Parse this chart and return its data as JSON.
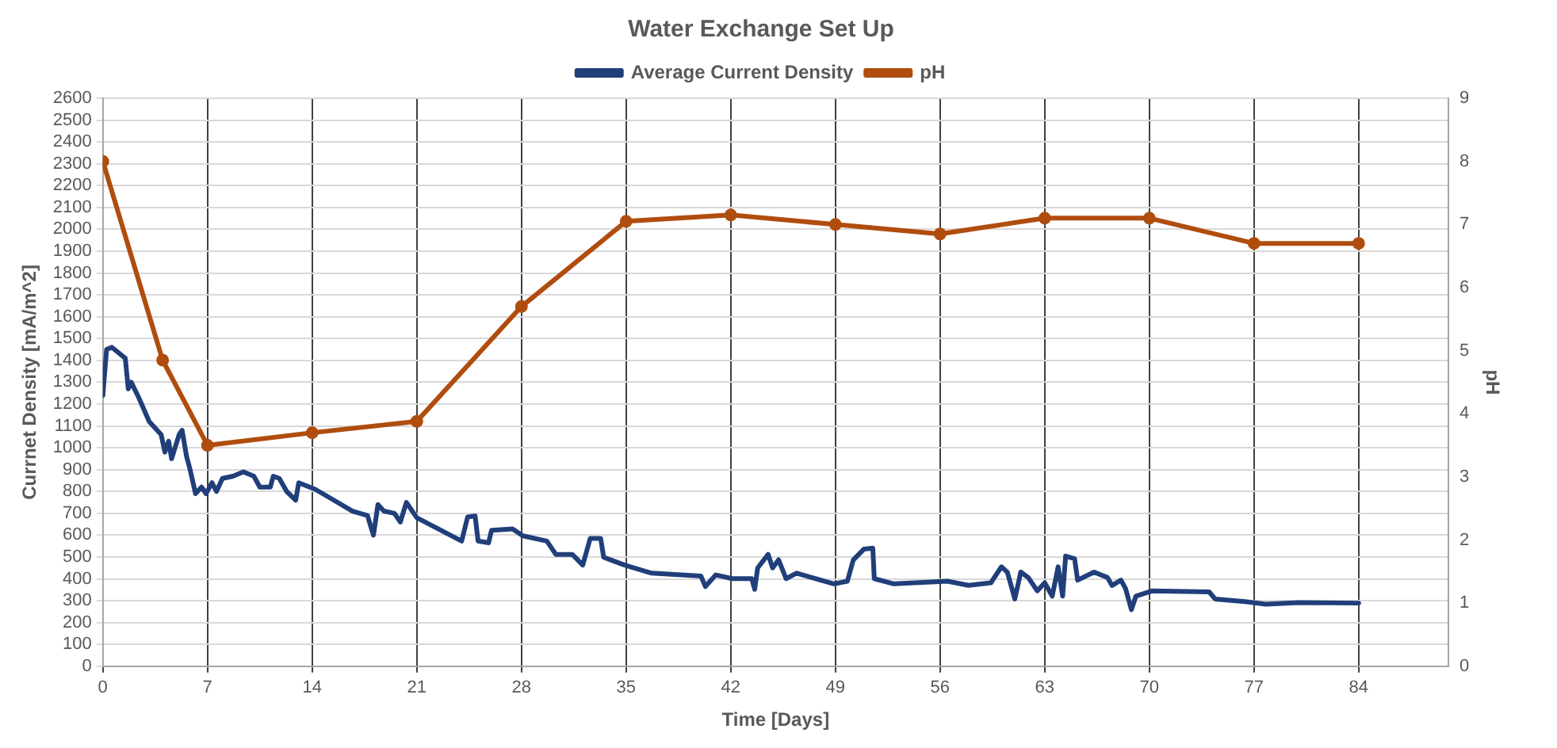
{
  "chart_data": {
    "type": "line",
    "title": "Water Exchange Set Up",
    "xlabel": "Time [Days]",
    "ylabel": "Currnet Density [mA/m^2]",
    "y2label": "pH",
    "xlim": [
      0,
      90
    ],
    "xticks": [
      0,
      7,
      14,
      21,
      28,
      35,
      42,
      49,
      56,
      63,
      70,
      77,
      84
    ],
    "ylim": [
      0,
      2600
    ],
    "yticks": [
      0,
      100,
      200,
      300,
      400,
      500,
      600,
      700,
      800,
      900,
      1000,
      1100,
      1200,
      1300,
      1400,
      1500,
      1600,
      1700,
      1800,
      1900,
      2000,
      2100,
      2200,
      2300,
      2400,
      2500,
      2600
    ],
    "y2lim": [
      0,
      9
    ],
    "y2ticks": [
      0,
      1,
      2,
      3,
      4,
      5,
      6,
      7,
      8,
      9
    ],
    "grid": true,
    "legend": "top",
    "line_style": "solid",
    "series": [
      {
        "name": "Average Current Density",
        "color": "#203f7a",
        "marker": "none",
        "x": [
          0,
          0.25,
          0.6,
          1.5,
          1.7,
          1.9,
          2.4,
          3.1,
          3.9,
          4.15,
          4.4,
          4.6,
          5.1,
          5.3,
          5.6,
          5.8,
          6.2,
          6.6,
          6.9,
          7.3,
          7.6,
          8,
          8.7,
          9.4,
          10.1,
          10.5,
          11.2,
          11.4,
          11.8,
          12.3,
          12.9,
          13.1,
          14.2,
          15.2,
          16.7,
          17.7,
          18.1,
          18.4,
          18.8,
          19.5,
          19.9,
          20.3,
          21,
          22.4,
          24,
          24.4,
          24.9,
          25.1,
          25.8,
          26,
          27.4,
          28.1,
          29.7,
          30.3,
          31.4,
          32.1,
          32.6,
          33.3,
          33.5,
          34.9,
          36.7,
          40,
          40.3,
          41,
          42.1,
          43.4,
          43.6,
          43.8,
          44.5,
          44.8,
          45.2,
          45.7,
          46.4,
          48.9,
          49.8,
          50.2,
          50.9,
          51.5,
          51.6,
          52.9,
          56.5,
          57.9,
          59.4,
          60.1,
          60.5,
          61,
          61.4,
          61.9,
          62.5,
          63,
          63.5,
          63.9,
          64.2,
          64.4,
          65,
          65.2,
          66.3,
          67.2,
          67.5,
          68.1,
          68.4,
          68.8,
          69.1,
          70.2,
          74,
          74.4,
          76.4,
          77.8,
          80,
          84
        ],
        "values": [
          1240,
          1450,
          1460,
          1410,
          1270,
          1300,
          1230,
          1120,
          1060,
          980,
          1030,
          950,
          1060,
          1080,
          960,
          910,
          790,
          820,
          790,
          840,
          800,
          860,
          870,
          890,
          870,
          820,
          820,
          870,
          860,
          800,
          760,
          840,
          810,
          770,
          710,
          690,
          600,
          740,
          710,
          700,
          660,
          750,
          680,
          630,
          573,
          683,
          688,
          573,
          565,
          622,
          629,
          597,
          573,
          512,
          512,
          463,
          585,
          585,
          499,
          463,
          426,
          413,
          365,
          418,
          401,
          401,
          352,
          450,
          512,
          450,
          487,
          401,
          426,
          377,
          389,
          487,
          536,
          541,
          401,
          377,
          389,
          370,
          382,
          455,
          431,
          308,
          431,
          406,
          345,
          382,
          321,
          455,
          321,
          504,
          492,
          394,
          431,
          406,
          370,
          394,
          357,
          259,
          321,
          345,
          340,
          308,
          296,
          284,
          291,
          289
        ]
      },
      {
        "name": "pH",
        "color": "#b04d0e",
        "marker": "circle",
        "axis": "y2",
        "x": [
          0,
          4,
          7,
          14,
          21,
          28,
          35,
          42,
          49,
          56,
          63,
          70,
          77,
          84
        ],
        "values": [
          8.0,
          4.85,
          3.5,
          3.7,
          3.88,
          5.7,
          7.05,
          7.15,
          7.0,
          6.85,
          7.1,
          7.1,
          6.7,
          6.7
        ]
      }
    ]
  }
}
